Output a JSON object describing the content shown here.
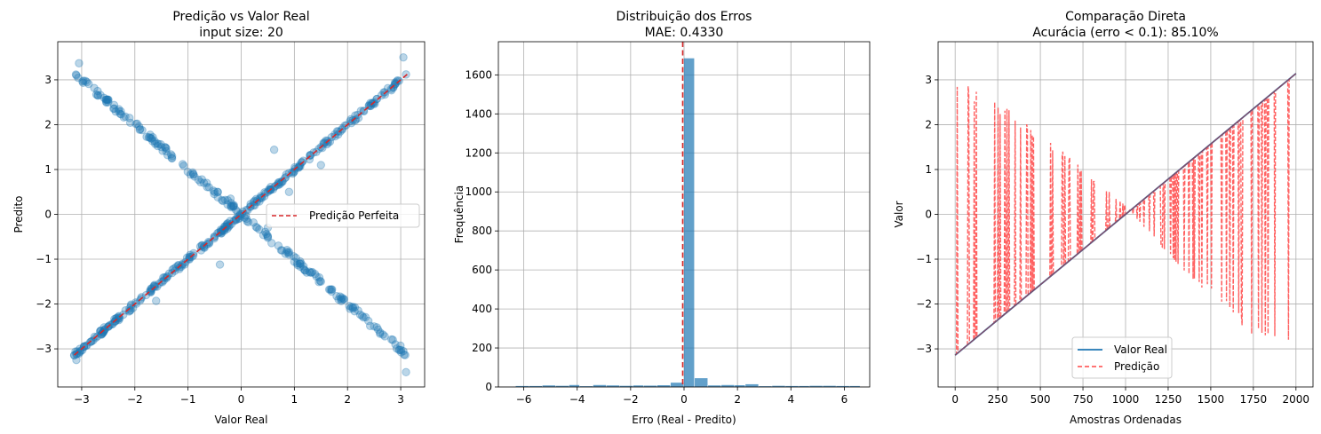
{
  "charts": [
    {
      "type": "scatter",
      "title": "Predição vs Valor Real",
      "subtitle": "input size: 20",
      "xlabel": "Valor Real",
      "ylabel": "Predito",
      "xlim": [
        -3.45,
        3.45
      ],
      "ylim": [
        -3.85,
        3.85
      ],
      "xticks": [
        -3,
        -2,
        -1,
        0,
        1,
        2,
        3
      ],
      "yticks": [
        -3,
        -2,
        -1,
        0,
        1,
        2,
        3
      ],
      "grid": true,
      "legend_position": "center-right",
      "colors": {
        "points": "#1f77b4",
        "reference": "#d62728"
      },
      "series": [
        {
          "name": "",
          "points_description_values": {
            "diagonal_points": [
              [
                -3.1,
                -3.12
              ],
              [
                -2.9,
                -2.92
              ],
              [
                -2.7,
                -2.72
              ],
              [
                -2.5,
                -2.5
              ],
              [
                -2.3,
                -2.31
              ],
              [
                -2.1,
                -2.1
              ],
              [
                -1.9,
                -1.92
              ],
              [
                -1.7,
                -1.72
              ],
              [
                -1.5,
                -1.5
              ],
              [
                -1.3,
                -1.31
              ],
              [
                -1.1,
                -1.1
              ],
              [
                -0.9,
                -0.92
              ],
              [
                -0.7,
                -0.71
              ],
              [
                -0.5,
                -0.5
              ],
              [
                -0.3,
                -0.31
              ],
              [
                -0.1,
                -0.1
              ],
              [
                0.1,
                0.1
              ],
              [
                0.3,
                0.31
              ],
              [
                0.5,
                0.5
              ],
              [
                0.7,
                0.71
              ],
              [
                0.9,
                0.92
              ],
              [
                1.1,
                1.1
              ],
              [
                1.3,
                1.31
              ],
              [
                1.5,
                1.5
              ],
              [
                1.7,
                1.72
              ],
              [
                1.9,
                1.91
              ],
              [
                2.1,
                2.1
              ],
              [
                2.3,
                2.31
              ],
              [
                2.5,
                2.5
              ],
              [
                2.7,
                2.72
              ],
              [
                2.9,
                2.91
              ],
              [
                3.1,
                3.12
              ]
            ],
            "anti_diagonal_points": [
              [
                -3.1,
                3.1
              ],
              [
                -3.05,
                3.37
              ],
              [
                -2.9,
                2.95
              ],
              [
                -2.7,
                2.75
              ],
              [
                -2.5,
                2.5
              ],
              [
                -2.3,
                2.3
              ],
              [
                -2.1,
                2.15
              ],
              [
                -1.9,
                1.9
              ],
              [
                -1.7,
                1.7
              ],
              [
                -1.5,
                1.5
              ],
              [
                -1.3,
                1.3
              ],
              [
                -1.1,
                1.12
              ],
              [
                -0.9,
                0.9
              ],
              [
                -0.7,
                0.7
              ],
              [
                -0.5,
                0.5
              ],
              [
                -0.3,
                0.32
              ],
              [
                -0.1,
                0.1
              ],
              [
                0.1,
                -0.1
              ],
              [
                0.3,
                -0.3
              ],
              [
                0.5,
                -0.5
              ],
              [
                0.7,
                -0.7
              ],
              [
                0.9,
                -0.9
              ],
              [
                1.1,
                -1.1
              ],
              [
                1.3,
                -1.3
              ],
              [
                1.5,
                -1.5
              ],
              [
                1.7,
                -1.72
              ],
              [
                1.9,
                -1.9
              ],
              [
                2.1,
                -2.1
              ],
              [
                2.3,
                -2.3
              ],
              [
                2.5,
                -2.5
              ],
              [
                2.7,
                -2.72
              ],
              [
                2.9,
                -2.9
              ],
              [
                3.05,
                -3.05
              ],
              [
                3.1,
                -3.52
              ]
            ],
            "outliers": [
              [
                0.62,
                1.44
              ],
              [
                -0.4,
                -1.12
              ],
              [
                0.9,
                0.5
              ],
              [
                1.5,
                1.1
              ],
              [
                -1.6,
                -1.93
              ],
              [
                3.05,
                3.5
              ],
              [
                -3.1,
                -3.25
              ],
              [
                0.5,
                -0.3
              ],
              [
                -0.2,
                0.35
              ]
            ]
          }
        },
        {
          "name": "Predição Perfeita",
          "x": [
            -3.14,
            3.14
          ],
          "y": [
            -3.14,
            3.14
          ],
          "style": "dashed"
        }
      ]
    },
    {
      "type": "bar",
      "title": "Distribuição dos Erros",
      "subtitle": "MAE: 0.4330",
      "xlabel": "Erro (Real - Predito)",
      "ylabel": "Frequência",
      "xlim": [
        -6.95,
        6.95
      ],
      "ylim": [
        0,
        1770
      ],
      "xticks": [
        -6,
        -4,
        -2,
        0,
        2,
        4,
        6
      ],
      "yticks": [
        0,
        200,
        400,
        600,
        800,
        1000,
        1200,
        1400,
        1600
      ],
      "grid": true,
      "colors": {
        "bars": "#1f77b4",
        "mean_line": "#d62728"
      },
      "bin_edges": [
        -6.3,
        -5.8,
        -5.3,
        -4.8,
        -4.3,
        -3.9,
        -3.4,
        -2.9,
        -2.4,
        -1.9,
        -1.5,
        -1.0,
        -0.5,
        0.0,
        0.4,
        0.9,
        1.4,
        1.9,
        2.3,
        2.8,
        3.3,
        3.8,
        4.3,
        4.7,
        5.2,
        5.7,
        6.2,
        6.6
      ],
      "values": [
        5,
        5,
        8,
        6,
        10,
        4,
        10,
        8,
        6,
        8,
        7,
        9,
        22,
        1685,
        45,
        8,
        10,
        9,
        14,
        4,
        6,
        5,
        5,
        6,
        6,
        5,
        5
      ],
      "vline_x": -0.05
    },
    {
      "type": "line",
      "title": "Comparação Direta",
      "subtitle": "Acurácia (erro < 0.1): 85.10%",
      "xlabel": "Amostras Ordenadas",
      "ylabel": "Valor",
      "xlim": [
        -100,
        2100
      ],
      "ylim": [
        -3.85,
        3.85
      ],
      "xticks": [
        0,
        250,
        500,
        750,
        1000,
        1250,
        1500,
        1750,
        2000
      ],
      "yticks": [
        -3,
        -2,
        -1,
        0,
        1,
        2,
        3
      ],
      "grid": true,
      "legend_position": "lower-center",
      "colors": {
        "real": "#1f77b4",
        "pred": "#ff4747"
      },
      "series": [
        {
          "name": "Valor Real",
          "x": [
            0,
            2000
          ],
          "y": [
            -3.14,
            3.14
          ]
        },
        {
          "name": "Predição",
          "style": "dashed",
          "envelope_x": [
            0,
            100,
            250,
            500,
            750,
            1000,
            1250,
            1500,
            1750,
            2000
          ],
          "envelope_y": [
            3.1,
            2.8,
            2.5,
            1.8,
            1.0,
            0.2,
            -0.9,
            -1.8,
            -2.7,
            -3.1
          ]
        }
      ]
    }
  ]
}
